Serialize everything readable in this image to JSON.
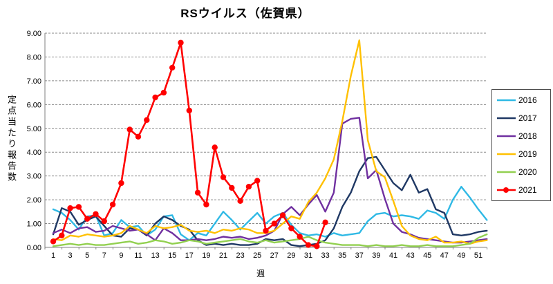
{
  "chart_data": {
    "type": "line",
    "title": "RSウイルス（佐賀県）",
    "xlabel": "週",
    "ylabel": "定点当たり報告数",
    "ylim": [
      0,
      9
    ],
    "ytick_step": 1,
    "ytick_labels": [
      "0.00",
      "1.00",
      "2.00",
      "3.00",
      "4.00",
      "5.00",
      "6.00",
      "7.00",
      "8.00",
      "9.00"
    ],
    "x_min": 1,
    "x_max": 52,
    "xtick_labels": [
      1,
      3,
      5,
      7,
      9,
      11,
      13,
      15,
      17,
      19,
      21,
      23,
      25,
      27,
      29,
      31,
      33,
      35,
      37,
      39,
      41,
      43,
      45,
      47,
      49,
      51
    ],
    "grid": "horizontal-dashed",
    "legend_position": "right",
    "note": "values are per-sentinel weekly reports read from the chart, approximate",
    "series": [
      {
        "name": "2016",
        "color": "#2FB9E5",
        "marker": "none",
        "values": [
          1.6,
          1.45,
          1.15,
          0.75,
          1.3,
          1.35,
          0.5,
          0.6,
          1.15,
          0.85,
          0.9,
          0.5,
          0.75,
          1.3,
          1.35,
          0.55,
          0.3,
          0.6,
          0.5,
          1.0,
          1.5,
          1.15,
          0.75,
          1.1,
          1.45,
          1.0,
          1.3,
          1.45,
          0.95,
          0.6,
          0.5,
          0.55,
          0.45,
          0.6,
          0.5,
          0.55,
          0.6,
          1.1,
          1.4,
          1.45,
          1.3,
          1.35,
          1.3,
          1.2,
          1.55,
          1.45,
          1.2,
          2.0,
          2.55,
          2.1,
          1.6,
          1.15
        ]
      },
      {
        "name": "2017",
        "color": "#1F3864",
        "marker": "none",
        "values": [
          0.55,
          1.65,
          1.5,
          0.95,
          1.15,
          1.3,
          0.9,
          0.5,
          0.45,
          0.8,
          0.75,
          0.5,
          1.0,
          1.3,
          1.15,
          0.9,
          0.75,
          0.3,
          0.1,
          0.15,
          0.1,
          0.15,
          0.1,
          0.1,
          0.15,
          0.35,
          0.3,
          0.35,
          0.1,
          0.05,
          0.1,
          0.15,
          0.3,
          0.8,
          1.7,
          2.3,
          3.2,
          3.75,
          3.8,
          3.25,
          2.7,
          2.4,
          3.05,
          2.3,
          2.45,
          1.6,
          1.45,
          0.55,
          0.5,
          0.55,
          0.65,
          0.7
        ]
      },
      {
        "name": "2018",
        "color": "#7030A0",
        "marker": "none",
        "values": [
          0.6,
          0.75,
          0.6,
          0.8,
          0.85,
          0.65,
          0.7,
          0.9,
          0.8,
          0.7,
          0.75,
          0.55,
          0.3,
          0.8,
          0.6,
          0.3,
          0.3,
          0.35,
          0.3,
          0.35,
          0.45,
          0.4,
          0.45,
          0.35,
          0.4,
          0.5,
          0.7,
          1.4,
          1.7,
          1.35,
          1.8,
          2.2,
          1.5,
          2.3,
          5.2,
          5.4,
          5.45,
          2.9,
          3.25,
          2.05,
          1.0,
          0.65,
          0.55,
          0.4,
          0.35,
          0.3,
          0.25,
          0.2,
          0.2,
          0.25,
          0.3,
          0.35
        ]
      },
      {
        "name": "2019",
        "color": "#FFC000",
        "marker": "none",
        "values": [
          0.35,
          0.3,
          0.5,
          0.45,
          0.55,
          0.5,
          0.45,
          0.5,
          0.6,
          0.9,
          0.75,
          0.6,
          0.9,
          0.8,
          0.85,
          0.95,
          0.7,
          0.65,
          0.7,
          0.6,
          0.75,
          0.7,
          0.8,
          0.75,
          0.6,
          0.6,
          0.7,
          1.0,
          1.3,
          1.2,
          1.9,
          2.3,
          2.9,
          3.7,
          5.3,
          7.2,
          8.7,
          4.5,
          3.2,
          2.95,
          1.95,
          0.9,
          0.5,
          0.35,
          0.3,
          0.45,
          0.2,
          0.2,
          0.25,
          0.15,
          0.25,
          0.3
        ]
      },
      {
        "name": "2020",
        "color": "#92D050",
        "marker": "none",
        "values": [
          0.05,
          0.1,
          0.15,
          0.1,
          0.15,
          0.1,
          0.1,
          0.15,
          0.2,
          0.25,
          0.15,
          0.2,
          0.3,
          0.25,
          0.15,
          0.2,
          0.3,
          0.25,
          0.15,
          0.2,
          0.25,
          0.3,
          0.35,
          0.25,
          0.2,
          0.3,
          0.2,
          0.25,
          0.3,
          0.35,
          0.45,
          0.3,
          0.2,
          0.15,
          0.1,
          0.1,
          0.1,
          0.05,
          0.1,
          0.05,
          0.05,
          0.1,
          0.05,
          0.05,
          0.1,
          0.05,
          0.05,
          0.05,
          0.1,
          0.15,
          0.4,
          0.55
        ]
      },
      {
        "name": "2021",
        "color": "#FF0000",
        "marker": "circle",
        "values": [
          0.25,
          0.5,
          1.65,
          1.7,
          1.2,
          1.4,
          1.1,
          1.8,
          2.7,
          4.95,
          4.65,
          5.35,
          6.3,
          6.5,
          7.55,
          8.6,
          5.75,
          2.3,
          1.8,
          4.2,
          2.95,
          2.5,
          1.95,
          2.55,
          2.8,
          0.7,
          1.0,
          1.35,
          0.8,
          0.45,
          0.1,
          0.05,
          1.05,
          null,
          null,
          null,
          null,
          null,
          null,
          null,
          null,
          null,
          null,
          null,
          null,
          null,
          null,
          null,
          null,
          null,
          null,
          null
        ]
      }
    ]
  }
}
